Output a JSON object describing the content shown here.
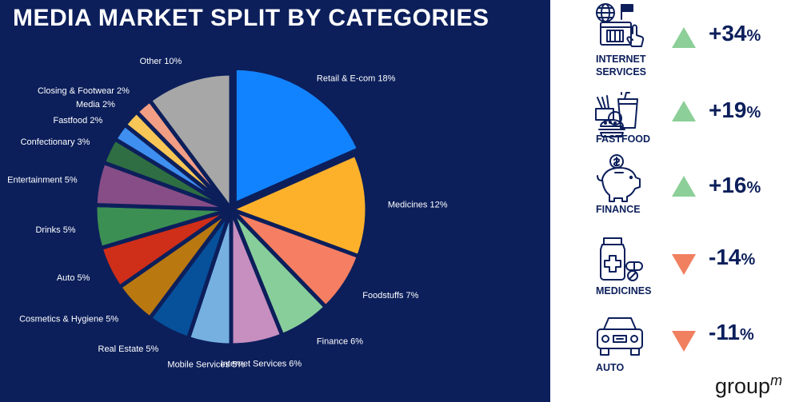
{
  "title": "MEDIA MARKET SPLIT BY CATEGORIES",
  "chart_data": {
    "type": "pie",
    "title": "MEDIA MARKET SPLIT BY CATEGORIES",
    "slices": [
      {
        "label": "Retail & E-com 18%",
        "value": 18,
        "color": "#1283ff"
      },
      {
        "label": "Medicines 12%",
        "value": 12,
        "color": "#fdb12b"
      },
      {
        "label": "Foodstuffs 7%",
        "value": 7,
        "color": "#f67e62"
      },
      {
        "label": "Finance 6%",
        "value": 6,
        "color": "#88ce9a"
      },
      {
        "label": "Internet Services 6%",
        "value": 6,
        "color": "#c78ec0"
      },
      {
        "label": "Mobile Services 5%",
        "value": 5,
        "color": "#75b0e0"
      },
      {
        "label": "Real Estate 5%",
        "value": 5,
        "color": "#07509a"
      },
      {
        "label": "Cosmetics & Hygiene 5%",
        "value": 5,
        "color": "#b97810"
      },
      {
        "label": "Auto 5%",
        "value": 5,
        "color": "#cf2e19"
      },
      {
        "label": "Drinks 5%",
        "value": 5,
        "color": "#3c8f53"
      },
      {
        "label": "Entertainment 5%",
        "value": 5,
        "color": "#874d87"
      },
      {
        "label": "Confectionary 3%",
        "value": 3,
        "color": "#2f6e42"
      },
      {
        "label": "Fastfood 2%",
        "value": 2,
        "color": "#3f8ff0"
      },
      {
        "label": "Media 2%",
        "value": 2,
        "color": "#f8c656"
      },
      {
        "label": "Closing & Footwear 2%",
        "value": 2,
        "color": "#f29e85"
      },
      {
        "label": "Other 10%",
        "value": 10,
        "color": "#a7a7a7"
      }
    ]
  },
  "categories": [
    {
      "name": "INTERNET SERVICES",
      "change": "+34",
      "pct_sign": "%",
      "direction": "up",
      "icon": "internet-services-icon"
    },
    {
      "name": "FASTFOOD",
      "change": "+19",
      "pct_sign": "%",
      "direction": "up",
      "icon": "fastfood-icon"
    },
    {
      "name": "FINANCE",
      "change": "+16",
      "pct_sign": "%",
      "direction": "up",
      "icon": "piggy-bank-icon"
    },
    {
      "name": "MEDICINES",
      "change": "-14",
      "pct_sign": "%",
      "direction": "down",
      "icon": "medicines-icon"
    },
    {
      "name": "AUTO",
      "change": "-11",
      "pct_sign": "%",
      "direction": "down",
      "icon": "car-icon"
    }
  ],
  "colors": {
    "background": "#0c1f5b",
    "up": "#8ccf98",
    "down": "#f08060",
    "text_dark": "#0c1f5b"
  },
  "logo": {
    "text": "group",
    "sup": "m"
  }
}
